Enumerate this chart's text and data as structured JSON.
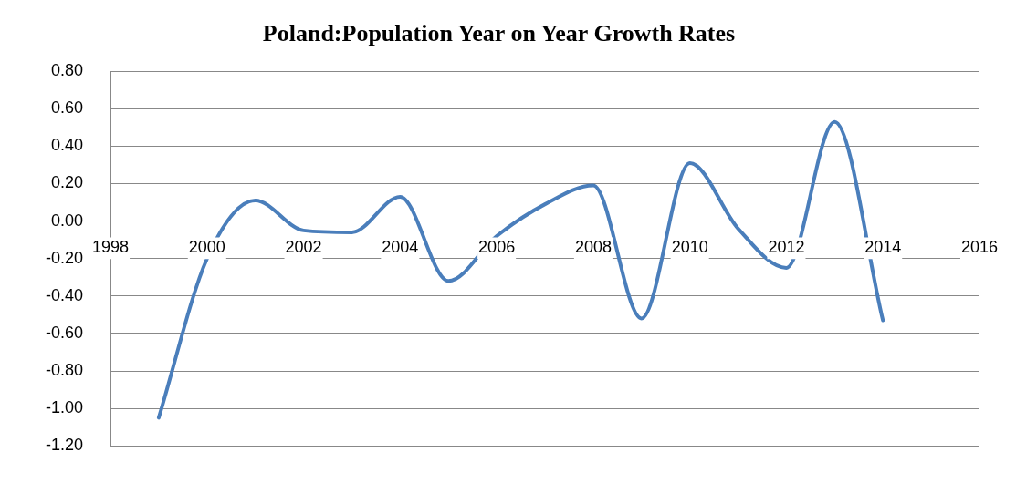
{
  "chart_data": {
    "type": "line",
    "title": "Poland:Population Year on Year Growth Rates",
    "x": [
      1999,
      2000,
      2001,
      2002,
      2003,
      2004,
      2005,
      2006,
      2007,
      2008,
      2009,
      2010,
      2011,
      2012,
      2013,
      2014
    ],
    "series": [
      {
        "color": "#4a7ebb",
        "values": [
          -1.05,
          -0.2,
          0.11,
          -0.05,
          -0.06,
          0.13,
          -0.32,
          -0.08,
          0.09,
          0.19,
          -0.52,
          0.31,
          -0.04,
          -0.25,
          0.53,
          -0.53
        ]
      }
    ],
    "xlim": [
      1998,
      2016
    ],
    "xticks": [
      1998,
      2000,
      2002,
      2004,
      2006,
      2008,
      2010,
      2012,
      2014,
      2016
    ],
    "ylim": [
      -1.2,
      0.8
    ],
    "yticks": [
      {
        "value": -1.2,
        "label": "-1.20"
      },
      {
        "value": -1.0,
        "label": "-1.00"
      },
      {
        "value": -0.8,
        "label": "-0.80"
      },
      {
        "value": -0.6,
        "label": "-0.60"
      },
      {
        "value": -0.4,
        "label": "-0.40"
      },
      {
        "value": -0.2,
        "label": "-0.20"
      },
      {
        "value": 0,
        "label": "0.00"
      },
      {
        "value": 0.2,
        "label": "0.20"
      },
      {
        "value": 0.4,
        "label": "0.40"
      },
      {
        "value": 0.6,
        "label": "0.60"
      },
      {
        "value": 0.8,
        "label": "0.80"
      }
    ],
    "grid": "y",
    "legend": false,
    "marker": "none",
    "line_style": "solid"
  }
}
